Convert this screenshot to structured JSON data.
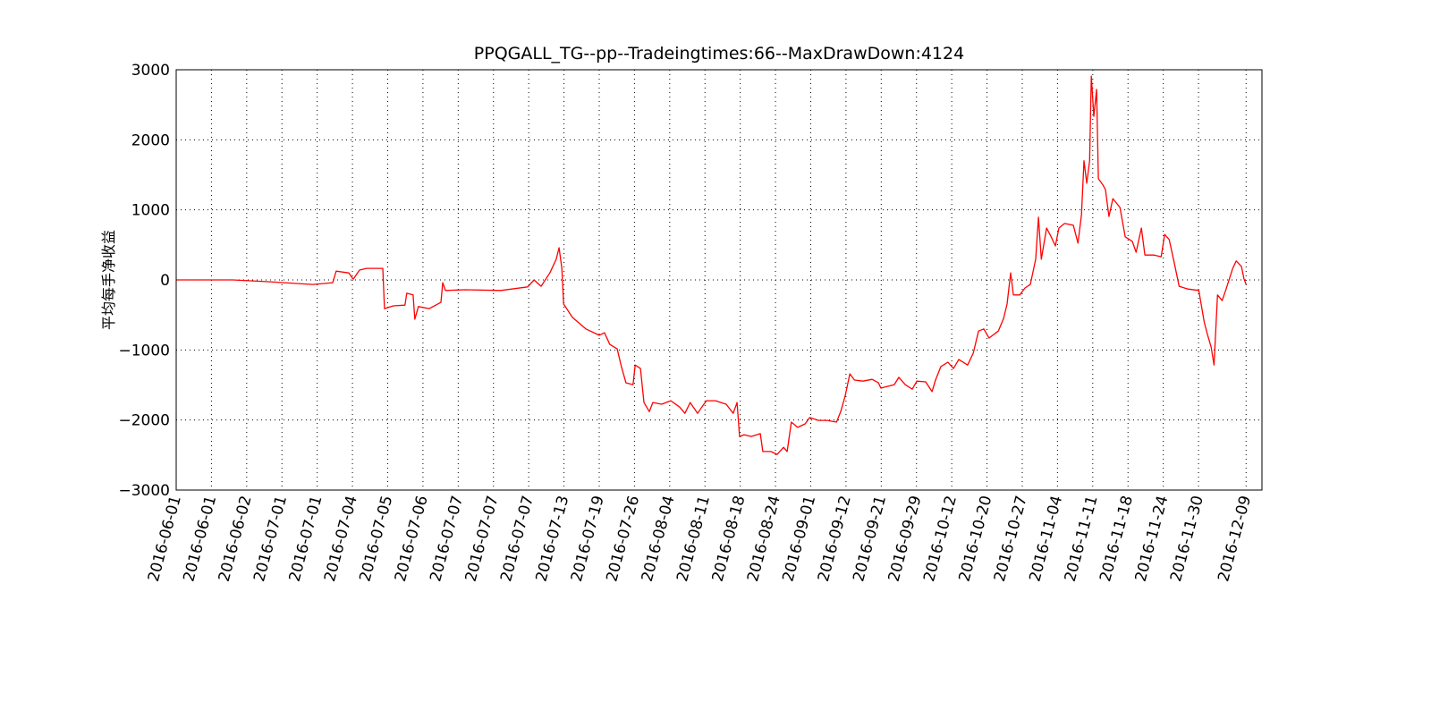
{
  "chart_data": {
    "type": "line",
    "title": "PPQGALL_TG--pp--Tradeingtimes:66--MaxDrawDown:4124",
    "y_label": "平均每手净收益",
    "grid": true,
    "xlim": [
      0,
      3080
    ],
    "ylim": [
      -3000,
      3000
    ],
    "yticks": [
      {
        "value": -3000,
        "label": "−3000"
      },
      {
        "value": -2000,
        "label": "−2000"
      },
      {
        "value": -1000,
        "label": "−1000"
      },
      0,
      1000,
      2000,
      3000
    ],
    "xticks": [
      {
        "value": 0,
        "label": "2016-06-01"
      },
      {
        "value": 100,
        "label": "2016-06-01"
      },
      {
        "value": 200,
        "label": "2016-06-02"
      },
      {
        "value": 300,
        "label": "2016-07-01"
      },
      {
        "value": 400,
        "label": "2016-07-01"
      },
      {
        "value": 500,
        "label": "2016-07-04"
      },
      {
        "value": 600,
        "label": "2016-07-05"
      },
      {
        "value": 700,
        "label": "2016-07-06"
      },
      {
        "value": 800,
        "label": "2016-07-07"
      },
      {
        "value": 900,
        "label": "2016-07-07"
      },
      {
        "value": 1000,
        "label": "2016-07-07"
      },
      {
        "value": 1100,
        "label": "2016-07-13"
      },
      {
        "value": 1200,
        "label": "2016-07-19"
      },
      {
        "value": 1300,
        "label": "2016-07-26"
      },
      {
        "value": 1400,
        "label": "2016-08-04"
      },
      {
        "value": 1500,
        "label": "2016-08-11"
      },
      {
        "value": 1600,
        "label": "2016-08-18"
      },
      {
        "value": 1700,
        "label": "2016-08-24"
      },
      {
        "value": 1800,
        "label": "2016-09-01"
      },
      {
        "value": 1900,
        "label": "2016-09-12"
      },
      {
        "value": 2000,
        "label": "2016-09-21"
      },
      {
        "value": 2100,
        "label": "2016-09-29"
      },
      {
        "value": 2200,
        "label": "2016-10-12"
      },
      {
        "value": 2300,
        "label": "2016-10-20"
      },
      {
        "value": 2400,
        "label": "2016-10-27"
      },
      {
        "value": 2500,
        "label": "2016-11-04"
      },
      {
        "value": 2600,
        "label": "2016-11-11"
      },
      {
        "value": 2700,
        "label": "2016-11-18"
      },
      {
        "value": 2800,
        "label": "2016-11-24"
      },
      {
        "value": 2900,
        "label": "2016-11-30"
      },
      {
        "value": 3035,
        "label": "2016-12-09"
      }
    ],
    "series": [
      {
        "color": "#ff0000",
        "x": [
          0,
          160,
          261,
          388,
          444,
          454,
          490,
          502,
          520,
          540,
          586,
          591,
          616,
          649,
          654,
          672,
          677,
          687,
          718,
          751,
          756,
          764,
          820,
          921,
          997,
          1015,
          1035,
          1060,
          1078,
          1086,
          1094,
          1099,
          1124,
          1162,
          1200,
          1215,
          1230,
          1251,
          1263,
          1276,
          1296,
          1302,
          1317,
          1327,
          1342,
          1352,
          1377,
          1403,
          1428,
          1443,
          1458,
          1479,
          1491,
          1504,
          1530,
          1560,
          1580,
          1591,
          1598,
          1611,
          1631,
          1657,
          1664,
          1687,
          1705,
          1723,
          1733,
          1745,
          1763,
          1784,
          1797,
          1822,
          1847,
          1873,
          1885,
          1898,
          1911,
          1924,
          1948,
          1974,
          1992,
          1999,
          2037,
          2050,
          2068,
          2088,
          2101,
          2126,
          2144,
          2154,
          2169,
          2189,
          2205,
          2220,
          2245,
          2261,
          2276,
          2291,
          2306,
          2332,
          2347,
          2357,
          2367,
          2375,
          2393,
          2408,
          2423,
          2438,
          2446,
          2454,
          2469,
          2482,
          2494,
          2504,
          2520,
          2545,
          2558,
          2568,
          2575,
          2583,
          2591,
          2596,
          2603,
          2611,
          2616,
          2629,
          2636,
          2646,
          2657,
          2677,
          2692,
          2712,
          2723,
          2738,
          2748,
          2774,
          2794,
          2804,
          2817,
          2830,
          2845,
          2870,
          2901,
          2916,
          2926,
          2936,
          2944,
          2954,
          2967,
          2977,
          2997,
          3007,
          3022,
          3029,
          3035
        ],
        "values": [
          0,
          0,
          -25,
          -65,
          -40,
          125,
          100,
          10,
          140,
          165,
          165,
          -410,
          -370,
          -360,
          -190,
          -215,
          -560,
          -380,
          -410,
          -320,
          -40,
          -150,
          -140,
          -150,
          -100,
          0,
          -90,
          100,
          295,
          460,
          165,
          -345,
          -535,
          -700,
          -790,
          -755,
          -920,
          -985,
          -1240,
          -1470,
          -1495,
          -1215,
          -1265,
          -1750,
          -1880,
          -1750,
          -1775,
          -1725,
          -1815,
          -1905,
          -1750,
          -1905,
          -1815,
          -1725,
          -1725,
          -1775,
          -1905,
          -1750,
          -2235,
          -2210,
          -2235,
          -2195,
          -2450,
          -2450,
          -2490,
          -2390,
          -2450,
          -2030,
          -2105,
          -2055,
          -1965,
          -2005,
          -2005,
          -2030,
          -1880,
          -1650,
          -1340,
          -1430,
          -1445,
          -1420,
          -1470,
          -1545,
          -1495,
          -1390,
          -1495,
          -1560,
          -1445,
          -1455,
          -1595,
          -1430,
          -1240,
          -1175,
          -1265,
          -1135,
          -1215,
          -1045,
          -730,
          -700,
          -830,
          -730,
          -550,
          -345,
          100,
          -215,
          -215,
          -115,
          -65,
          295,
          895,
          295,
          740,
          615,
          485,
          740,
          805,
          780,
          525,
          930,
          1700,
          1380,
          1700,
          2910,
          2335,
          2720,
          1445,
          1355,
          1290,
          905,
          1160,
          1035,
          615,
          550,
          395,
          740,
          355,
          355,
          330,
          650,
          575,
          270,
          -90,
          -130,
          -150,
          -600,
          -790,
          -960,
          -1215,
          -215,
          -295,
          -150,
          165,
          270,
          190,
          15,
          -65
        ]
      }
    ]
  }
}
